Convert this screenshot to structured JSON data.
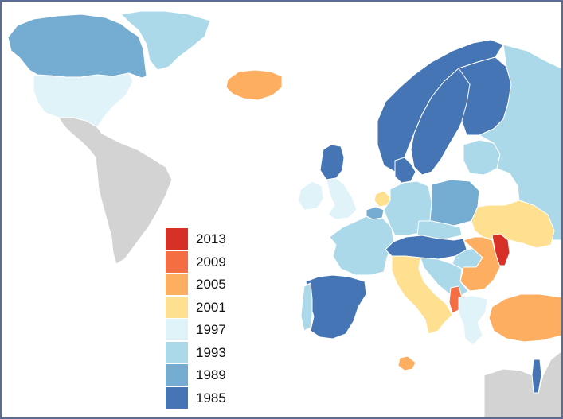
{
  "colors": {
    "c2013": "#d73027",
    "c2009": "#f46d43",
    "c2005": "#fdae61",
    "c2001": "#fee090",
    "c1997": "#e0f3f8",
    "c1993": "#abd9e9",
    "c1989": "#74add1",
    "c1985": "#4575b4",
    "no_data": "#d3d3d3",
    "frame": "#5a6b96"
  },
  "legend": {
    "items": [
      {
        "label": "2013",
        "color": "#d73027"
      },
      {
        "label": "2009",
        "color": "#f46d43"
      },
      {
        "label": "2005",
        "color": "#fdae61"
      },
      {
        "label": "2001",
        "color": "#fee090"
      },
      {
        "label": "1997",
        "color": "#e0f3f8"
      },
      {
        "label": "1993",
        "color": "#abd9e9"
      },
      {
        "label": "1989",
        "color": "#74add1"
      },
      {
        "label": "1985",
        "color": "#4575b4"
      }
    ]
  },
  "regions": {
    "canada": "#74add1",
    "greenland": "#abd9e9",
    "usa": "#e0f3f8",
    "latin_america": "#d3d3d3",
    "iceland": "#fdae61",
    "norway": "#4575b4",
    "sweden": "#4575b4",
    "finland": "#4575b4",
    "denmark": "#4575b4",
    "scotland": "#4575b4",
    "england": "#e0f3f8",
    "ireland": "#e0f3f8",
    "netherlands": "#fee090",
    "belgium": "#74add1",
    "france": "#abd9e9",
    "germany": "#abd9e9",
    "poland": "#74add1",
    "baltics": "#abd9e9",
    "russia": "#abd9e9",
    "belarus": "#ffffff",
    "ukraine": "#fee090",
    "moldova": "#d73027",
    "romania": "#fdae61",
    "bulgaria": "#ffffff",
    "czech": "#abd9e9",
    "austria_switz": "#4575b4",
    "hungary": "#abd9e9",
    "italy": "#fee090",
    "balkans": "#abd9e9",
    "albania": "#f46d43",
    "greece": "#e0f3f8",
    "turkey": "#fdae61",
    "spain": "#4575b4",
    "portugal": "#abd9e9",
    "malta": "#fdae61",
    "israel": "#4575b4",
    "north_africa": "#d3d3d3"
  }
}
